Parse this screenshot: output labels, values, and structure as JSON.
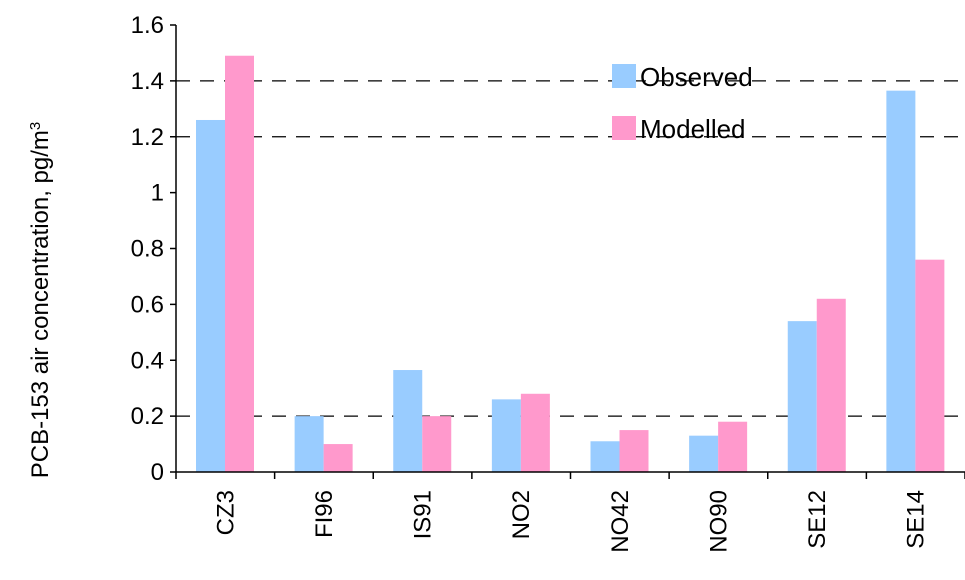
{
  "chart_data": {
    "type": "bar",
    "categories": [
      "CZ3",
      "FI96",
      "IS91",
      "NO2",
      "NO42",
      "NO90",
      "SE12",
      "SE14"
    ],
    "series": [
      {
        "name": "Observed",
        "color": "#99ccff",
        "values": [
          1.26,
          0.2,
          0.365,
          0.26,
          0.11,
          0.13,
          0.54,
          1.365
        ]
      },
      {
        "name": "Modelled",
        "color": "#ff99cc",
        "values": [
          1.49,
          0.1,
          0.2,
          0.28,
          0.15,
          0.18,
          0.62,
          0.76
        ]
      }
    ],
    "title": "",
    "xlabel": "",
    "ylabel": "PCB-153 air concentration, pg/m",
    "ylabel_superscript": "3",
    "ylim": [
      0,
      1.6
    ],
    "yticks": [
      "0",
      "0.2",
      "0.4",
      "0.6",
      "0.8",
      "1",
      "1.2",
      "1.4",
      "1.6"
    ],
    "ytick_values": [
      0,
      0.2,
      0.4,
      0.6,
      0.8,
      1,
      1.2,
      1.4,
      1.6
    ],
    "gridlines": "dashed at 0.2, 1.2, 1.4",
    "gridline_values": [
      0.2,
      1.2,
      1.4
    ],
    "legend_position": "top-right"
  }
}
